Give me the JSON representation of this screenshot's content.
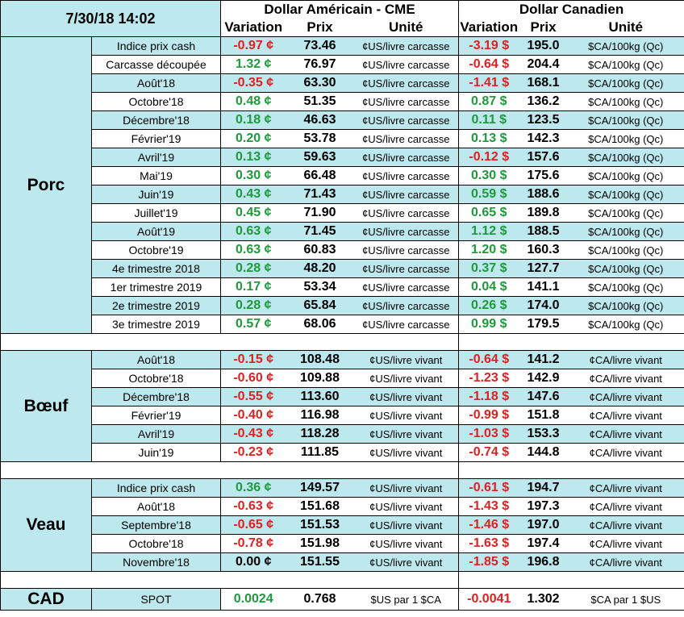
{
  "header": {
    "datetime": "7/30/18 14:02",
    "usd_title": "Dollar Américain - CME",
    "cad_title": "Dollar Canadien",
    "col_variation": "Variation",
    "col_prix": "Prix",
    "col_unite": "Unité"
  },
  "groups": {
    "porc": "Porc",
    "boeuf": "Bœuf",
    "veau": "Veau",
    "cad": "CAD"
  },
  "colors": {
    "positive": "#1e9a3c",
    "negative": "#e02020",
    "shade": "#bde8ee"
  },
  "porc_rows": [
    {
      "label": "Indice prix cash",
      "usd_var": "-0.97 ¢",
      "usd_price": "73.46",
      "usd_unit": "¢US/livre carcasse",
      "cad_var": "-3.19 $",
      "cad_price": "195.0",
      "cad_unit": "$CA/100kg (Qc)"
    },
    {
      "label": "Carcasse découpée",
      "usd_var": "1.32 ¢",
      "usd_price": "76.97",
      "usd_unit": "¢US/livre carcasse",
      "cad_var": "-0.64 $",
      "cad_price": "204.4",
      "cad_unit": "$CA/100kg (Qc)"
    },
    {
      "label": "Août'18",
      "usd_var": "-0.35 ¢",
      "usd_price": "63.30",
      "usd_unit": "¢US/livre carcasse",
      "cad_var": "-1.41 $",
      "cad_price": "168.1",
      "cad_unit": "$CA/100kg (Qc)"
    },
    {
      "label": "Octobre'18",
      "usd_var": "0.48 ¢",
      "usd_price": "51.35",
      "usd_unit": "¢US/livre carcasse",
      "cad_var": "0.87 $",
      "cad_price": "136.2",
      "cad_unit": "$CA/100kg (Qc)"
    },
    {
      "label": "Décembre'18",
      "usd_var": "0.18 ¢",
      "usd_price": "46.63",
      "usd_unit": "¢US/livre carcasse",
      "cad_var": "0.11 $",
      "cad_price": "123.5",
      "cad_unit": "$CA/100kg (Qc)"
    },
    {
      "label": "Février'19",
      "usd_var": "0.20 ¢",
      "usd_price": "53.78",
      "usd_unit": "¢US/livre carcasse",
      "cad_var": "0.13 $",
      "cad_price": "142.3",
      "cad_unit": "$CA/100kg (Qc)"
    },
    {
      "label": "Avril'19",
      "usd_var": "0.13 ¢",
      "usd_price": "59.63",
      "usd_unit": "¢US/livre carcasse",
      "cad_var": "-0.12 $",
      "cad_price": "157.6",
      "cad_unit": "$CA/100kg (Qc)"
    },
    {
      "label": "Mai'19",
      "usd_var": "0.30 ¢",
      "usd_price": "66.48",
      "usd_unit": "¢US/livre carcasse",
      "cad_var": "0.30 $",
      "cad_price": "175.6",
      "cad_unit": "$CA/100kg (Qc)"
    },
    {
      "label": "Juin'19",
      "usd_var": "0.43 ¢",
      "usd_price": "71.43",
      "usd_unit": "¢US/livre carcasse",
      "cad_var": "0.59 $",
      "cad_price": "188.6",
      "cad_unit": "$CA/100kg (Qc)"
    },
    {
      "label": "Juillet'19",
      "usd_var": "0.45 ¢",
      "usd_price": "71.90",
      "usd_unit": "¢US/livre carcasse",
      "cad_var": "0.65 $",
      "cad_price": "189.8",
      "cad_unit": "$CA/100kg (Qc)"
    },
    {
      "label": "Août'19",
      "usd_var": "0.63 ¢",
      "usd_price": "71.45",
      "usd_unit": "¢US/livre carcasse",
      "cad_var": "1.12 $",
      "cad_price": "188.5",
      "cad_unit": "$CA/100kg (Qc)"
    },
    {
      "label": "Octobre'19",
      "usd_var": "0.63 ¢",
      "usd_price": "60.83",
      "usd_unit": "¢US/livre carcasse",
      "cad_var": "1.20 $",
      "cad_price": "160.3",
      "cad_unit": "$CA/100kg (Qc)"
    },
    {
      "label": "4e trimestre 2018",
      "usd_var": "0.28 ¢",
      "usd_price": "48.20",
      "usd_unit": "¢US/livre carcasse",
      "cad_var": "0.37 $",
      "cad_price": "127.7",
      "cad_unit": "$CA/100kg (Qc)"
    },
    {
      "label": "1er trimestre 2019",
      "usd_var": "0.17 ¢",
      "usd_price": "53.34",
      "usd_unit": "¢US/livre carcasse",
      "cad_var": "0.04 $",
      "cad_price": "141.1",
      "cad_unit": "$CA/100kg (Qc)"
    },
    {
      "label": "2e trimestre 2019",
      "usd_var": "0.28 ¢",
      "usd_price": "65.84",
      "usd_unit": "¢US/livre carcasse",
      "cad_var": "0.26 $",
      "cad_price": "174.0",
      "cad_unit": "$CA/100kg (Qc)"
    },
    {
      "label": "3e trimestre 2019",
      "usd_var": "0.57 ¢",
      "usd_price": "68.06",
      "usd_unit": "¢US/livre carcasse",
      "cad_var": "0.99 $",
      "cad_price": "179.5",
      "cad_unit": "$CA/100kg (Qc)"
    }
  ],
  "boeuf_rows": [
    {
      "label": "Août'18",
      "usd_var": "-0.15 ¢",
      "usd_price": "108.48",
      "usd_unit": "¢US/livre vivant",
      "cad_var": "-0.64 $",
      "cad_price": "141.2",
      "cad_unit": "¢CA/livre vivant"
    },
    {
      "label": "Octobre'18",
      "usd_var": "-0.60 ¢",
      "usd_price": "109.88",
      "usd_unit": "¢US/livre vivant",
      "cad_var": "-1.23 $",
      "cad_price": "142.9",
      "cad_unit": "¢CA/livre vivant"
    },
    {
      "label": "Décembre'18",
      "usd_var": "-0.55 ¢",
      "usd_price": "113.60",
      "usd_unit": "¢US/livre vivant",
      "cad_var": "-1.18 $",
      "cad_price": "147.6",
      "cad_unit": "¢CA/livre vivant"
    },
    {
      "label": "Février'19",
      "usd_var": "-0.40 ¢",
      "usd_price": "116.98",
      "usd_unit": "¢US/livre vivant",
      "cad_var": "-0.99 $",
      "cad_price": "151.8",
      "cad_unit": "¢CA/livre vivant"
    },
    {
      "label": "Avril'19",
      "usd_var": "-0.43 ¢",
      "usd_price": "118.28",
      "usd_unit": "¢US/livre vivant",
      "cad_var": "-1.03 $",
      "cad_price": "153.3",
      "cad_unit": "¢CA/livre vivant"
    },
    {
      "label": "Juin'19",
      "usd_var": "-0.23 ¢",
      "usd_price": "111.85",
      "usd_unit": "¢US/livre vivant",
      "cad_var": "-0.74 $",
      "cad_price": "144.8",
      "cad_unit": "¢CA/livre vivant"
    }
  ],
  "veau_rows": [
    {
      "label": "Indice prix cash",
      "usd_var": "0.36 ¢",
      "usd_price": "149.57",
      "usd_unit": "¢US/livre vivant",
      "cad_var": "-0.61 $",
      "cad_price": "194.7",
      "cad_unit": "¢CA/livre vivant"
    },
    {
      "label": "Août'18",
      "usd_var": "-0.63 ¢",
      "usd_price": "151.68",
      "usd_unit": "¢US/livre vivant",
      "cad_var": "-1.43 $",
      "cad_price": "197.3",
      "cad_unit": "¢CA/livre vivant"
    },
    {
      "label": "Septembre'18",
      "usd_var": "-0.65 ¢",
      "usd_price": "151.53",
      "usd_unit": "¢US/livre vivant",
      "cad_var": "-1.46 $",
      "cad_price": "197.0",
      "cad_unit": "¢CA/livre vivant"
    },
    {
      "label": "Octobre'18",
      "usd_var": "-0.78 ¢",
      "usd_price": "151.98",
      "usd_unit": "¢US/livre vivant",
      "cad_var": "-1.63 $",
      "cad_price": "197.4",
      "cad_unit": "¢CA/livre vivant"
    },
    {
      "label": "Novembre'18",
      "usd_var": "0.00 ¢",
      "usd_price": "151.55",
      "usd_unit": "¢US/livre vivant",
      "cad_var": "-1.85 $",
      "cad_price": "196.8",
      "cad_unit": "¢CA/livre vivant"
    }
  ],
  "cad_row": {
    "label": "SPOT",
    "usd_var": "0.0024",
    "usd_price": "0.768",
    "usd_unit": "$US par 1 $CA",
    "cad_var": "-0.0041",
    "cad_price": "1.302",
    "cad_unit": "$CA par 1 $US"
  }
}
